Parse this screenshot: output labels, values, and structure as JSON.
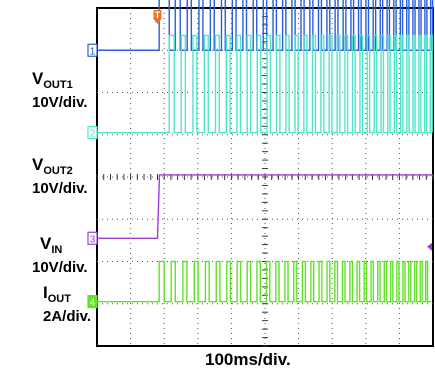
{
  "chart_data": {
    "type": "line",
    "title": "",
    "xlabel": "100ms/div.",
    "time_divisions": 10,
    "voltage_divisions": 8,
    "grid": true,
    "trigger_marker": "T",
    "trigger_time_div": 1.8,
    "channels": [
      {
        "number": "1",
        "name_main": "V",
        "name_sub": "OUT1",
        "scale": "10V/div.",
        "color": "#2b5fd9",
        "baseline_div": 3.0,
        "high_div": 6.1,
        "behavior": "pulsed",
        "first_rise_div": 1.85,
        "first_fall_div": 2.15
      },
      {
        "number": "2",
        "name_main": "V",
        "name_sub": "OUT2",
        "scale": "10V/div.",
        "color": "#4fe6cc",
        "baseline_div": 1.05,
        "high_div": 3.35,
        "behavior": "pulsed",
        "start_div": 2.15
      },
      {
        "number": "3",
        "name_main": "V",
        "name_sub": "IN",
        "scale": "10V/div.",
        "color": "#9a3fd6",
        "baseline_div": -1.45,
        "high_div": 0.05,
        "behavior": "step",
        "step_div": 1.8
      },
      {
        "number": "4",
        "name_main": "I",
        "name_sub": "OUT",
        "scale": "2A/div.",
        "color": "#62e02a",
        "baseline_div": -2.95,
        "high_div": -2.0,
        "behavior": "pulsed",
        "start_div": 1.85
      }
    ]
  }
}
